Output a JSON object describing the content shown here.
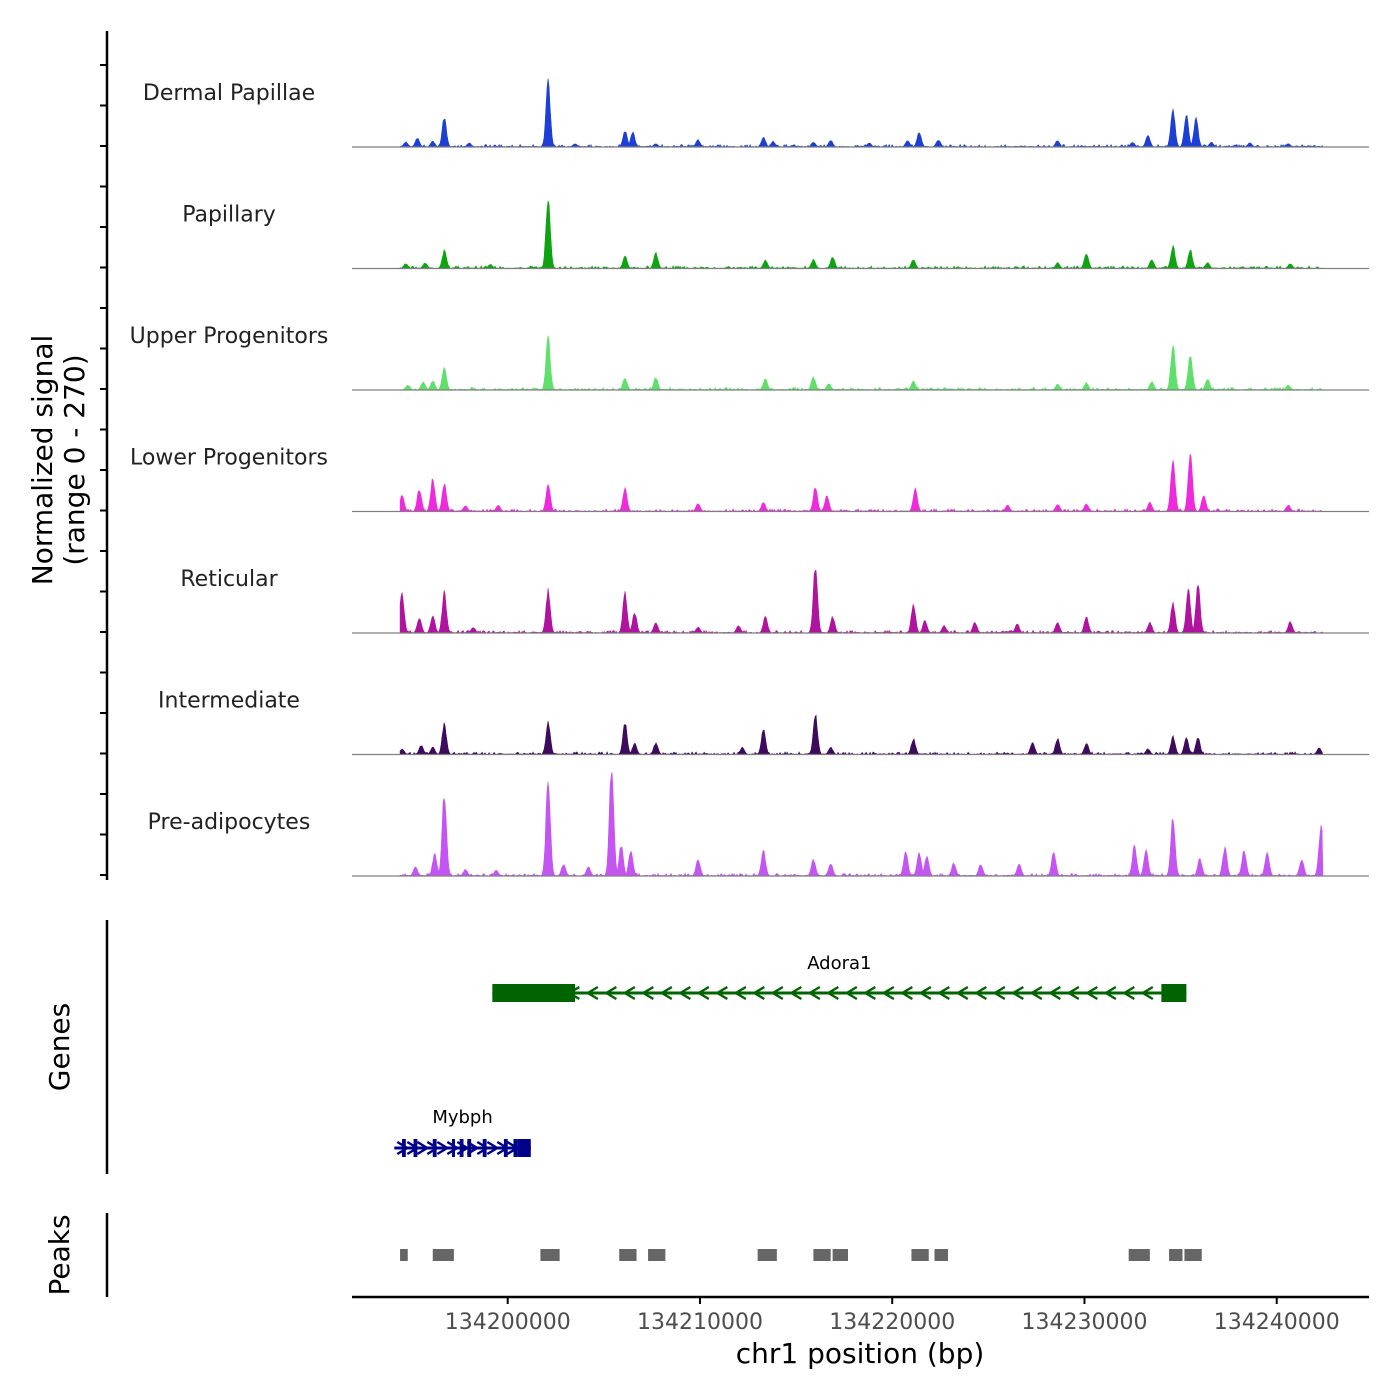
{
  "chart_data": {
    "type": "area",
    "title": "",
    "ylabel_line1": "Normalized signal",
    "ylabel_line2": "(range 0 - 270)",
    "xlabel": "chr1 position (bp)",
    "ylim": [
      0,
      270
    ],
    "xlim": [
      134191900,
      134244800
    ],
    "x_ticks": [
      134200000,
      134210000,
      134220000,
      134230000,
      134240000
    ],
    "x_tick_labels": [
      "134200000",
      "134210000",
      "134220000",
      "134230000",
      "134240000"
    ],
    "track_start": 134194400,
    "track_end": 134242400,
    "series": [
      {
        "name": "Dermal Papillae",
        "color": "#1e3fd6",
        "peaks": [
          {
            "x": 134194700,
            "y": 12
          },
          {
            "x": 134195300,
            "y": 22
          },
          {
            "x": 134196100,
            "y": 14
          },
          {
            "x": 134196700,
            "y": 72
          },
          {
            "x": 134198000,
            "y": 10
          },
          {
            "x": 134202100,
            "y": 162
          },
          {
            "x": 134203500,
            "y": 8
          },
          {
            "x": 134206100,
            "y": 40
          },
          {
            "x": 134206500,
            "y": 36
          },
          {
            "x": 134207700,
            "y": 8
          },
          {
            "x": 134209900,
            "y": 18
          },
          {
            "x": 134213300,
            "y": 24
          },
          {
            "x": 134213800,
            "y": 14
          },
          {
            "x": 134215900,
            "y": 12
          },
          {
            "x": 134216800,
            "y": 16
          },
          {
            "x": 134218800,
            "y": 10
          },
          {
            "x": 134220800,
            "y": 16
          },
          {
            "x": 134221400,
            "y": 36
          },
          {
            "x": 134222400,
            "y": 18
          },
          {
            "x": 134228600,
            "y": 16
          },
          {
            "x": 134232500,
            "y": 12
          },
          {
            "x": 134233300,
            "y": 30
          },
          {
            "x": 134234600,
            "y": 95
          },
          {
            "x": 134235300,
            "y": 78
          },
          {
            "x": 134235800,
            "y": 70
          },
          {
            "x": 134236600,
            "y": 12
          },
          {
            "x": 134238600,
            "y": 10
          },
          {
            "x": 134240600,
            "y": 8
          }
        ]
      },
      {
        "name": "Papillary",
        "color": "#0fa312",
        "peaks": [
          {
            "x": 134194700,
            "y": 12
          },
          {
            "x": 134195700,
            "y": 14
          },
          {
            "x": 134196700,
            "y": 44
          },
          {
            "x": 134199100,
            "y": 10
          },
          {
            "x": 134202100,
            "y": 180
          },
          {
            "x": 134206100,
            "y": 30
          },
          {
            "x": 134207700,
            "y": 38
          },
          {
            "x": 134213400,
            "y": 20
          },
          {
            "x": 134215900,
            "y": 22
          },
          {
            "x": 134216900,
            "y": 28
          },
          {
            "x": 134221100,
            "y": 22
          },
          {
            "x": 134228600,
            "y": 14
          },
          {
            "x": 134230100,
            "y": 38
          },
          {
            "x": 134233500,
            "y": 22
          },
          {
            "x": 134234600,
            "y": 55
          },
          {
            "x": 134235500,
            "y": 46
          },
          {
            "x": 134236400,
            "y": 14
          },
          {
            "x": 134240700,
            "y": 12
          }
        ]
      },
      {
        "name": "Upper Progenitors",
        "color": "#5ee06a",
        "peaks": [
          {
            "x": 134194800,
            "y": 12
          },
          {
            "x": 134195600,
            "y": 20
          },
          {
            "x": 134196100,
            "y": 22
          },
          {
            "x": 134196700,
            "y": 55
          },
          {
            "x": 134202100,
            "y": 130
          },
          {
            "x": 134206100,
            "y": 30
          },
          {
            "x": 134207700,
            "y": 30
          },
          {
            "x": 134213400,
            "y": 28
          },
          {
            "x": 134215900,
            "y": 32
          },
          {
            "x": 134216700,
            "y": 16
          },
          {
            "x": 134221100,
            "y": 22
          },
          {
            "x": 134228600,
            "y": 14
          },
          {
            "x": 134230100,
            "y": 18
          },
          {
            "x": 134233500,
            "y": 20
          },
          {
            "x": 134234600,
            "y": 110
          },
          {
            "x": 134235500,
            "y": 90
          },
          {
            "x": 134236400,
            "y": 28
          },
          {
            "x": 134240600,
            "y": 12
          }
        ]
      },
      {
        "name": "Lower Progenitors",
        "color": "#ee2bdc",
        "peaks": [
          {
            "x": 134194500,
            "y": 40
          },
          {
            "x": 134195400,
            "y": 55
          },
          {
            "x": 134196100,
            "y": 80
          },
          {
            "x": 134196700,
            "y": 68
          },
          {
            "x": 134197800,
            "y": 14
          },
          {
            "x": 134199500,
            "y": 16
          },
          {
            "x": 134202100,
            "y": 68
          },
          {
            "x": 134206100,
            "y": 55
          },
          {
            "x": 134209900,
            "y": 20
          },
          {
            "x": 134213300,
            "y": 22
          },
          {
            "x": 134216000,
            "y": 60
          },
          {
            "x": 134216600,
            "y": 38
          },
          {
            "x": 134221200,
            "y": 55
          },
          {
            "x": 134226000,
            "y": 16
          },
          {
            "x": 134228600,
            "y": 18
          },
          {
            "x": 134230100,
            "y": 18
          },
          {
            "x": 134233400,
            "y": 22
          },
          {
            "x": 134234600,
            "y": 130
          },
          {
            "x": 134235500,
            "y": 140
          },
          {
            "x": 134236200,
            "y": 40
          },
          {
            "x": 134240600,
            "y": 16
          }
        ]
      },
      {
        "name": "Reticular",
        "color": "#b0149e",
        "peaks": [
          {
            "x": 134194500,
            "y": 100
          },
          {
            "x": 134195400,
            "y": 38
          },
          {
            "x": 134196100,
            "y": 42
          },
          {
            "x": 134196700,
            "y": 100
          },
          {
            "x": 134198200,
            "y": 14
          },
          {
            "x": 134202100,
            "y": 105
          },
          {
            "x": 134206100,
            "y": 100
          },
          {
            "x": 134206600,
            "y": 50
          },
          {
            "x": 134207700,
            "y": 26
          },
          {
            "x": 134209900,
            "y": 14
          },
          {
            "x": 134212000,
            "y": 18
          },
          {
            "x": 134213400,
            "y": 40
          },
          {
            "x": 134216000,
            "y": 165
          },
          {
            "x": 134216900,
            "y": 40
          },
          {
            "x": 134221100,
            "y": 70
          },
          {
            "x": 134221700,
            "y": 30
          },
          {
            "x": 134222700,
            "y": 18
          },
          {
            "x": 134224300,
            "y": 26
          },
          {
            "x": 134226500,
            "y": 22
          },
          {
            "x": 134228600,
            "y": 26
          },
          {
            "x": 134230100,
            "y": 40
          },
          {
            "x": 134233400,
            "y": 26
          },
          {
            "x": 134234600,
            "y": 75
          },
          {
            "x": 134235400,
            "y": 105
          },
          {
            "x": 134235900,
            "y": 120
          },
          {
            "x": 134240700,
            "y": 28
          }
        ]
      },
      {
        "name": "Intermediate",
        "color": "#3e0a5c",
        "peaks": [
          {
            "x": 134194500,
            "y": 14
          },
          {
            "x": 134195500,
            "y": 22
          },
          {
            "x": 134196100,
            "y": 18
          },
          {
            "x": 134196700,
            "y": 75
          },
          {
            "x": 134202100,
            "y": 80
          },
          {
            "x": 134206100,
            "y": 78
          },
          {
            "x": 134206600,
            "y": 28
          },
          {
            "x": 134207700,
            "y": 28
          },
          {
            "x": 134212200,
            "y": 18
          },
          {
            "x": 134213300,
            "y": 60
          },
          {
            "x": 134216000,
            "y": 100
          },
          {
            "x": 134216800,
            "y": 18
          },
          {
            "x": 134221100,
            "y": 38
          },
          {
            "x": 134227300,
            "y": 30
          },
          {
            "x": 134228600,
            "y": 40
          },
          {
            "x": 134230100,
            "y": 28
          },
          {
            "x": 134233300,
            "y": 14
          },
          {
            "x": 134234600,
            "y": 45
          },
          {
            "x": 134235300,
            "y": 42
          },
          {
            "x": 134235900,
            "y": 42
          },
          {
            "x": 134242200,
            "y": 16
          }
        ]
      },
      {
        "name": "Pre-adipocytes",
        "color": "#c455f2",
        "peaks": [
          {
            "x": 134195200,
            "y": 22
          },
          {
            "x": 134196200,
            "y": 55
          },
          {
            "x": 134196700,
            "y": 210
          },
          {
            "x": 134197800,
            "y": 16
          },
          {
            "x": 134199400,
            "y": 14
          },
          {
            "x": 134202100,
            "y": 250
          },
          {
            "x": 134202900,
            "y": 28
          },
          {
            "x": 134204200,
            "y": 22
          },
          {
            "x": 134205400,
            "y": 275
          },
          {
            "x": 134205900,
            "y": 75
          },
          {
            "x": 134206400,
            "y": 60
          },
          {
            "x": 134209900,
            "y": 40
          },
          {
            "x": 134213300,
            "y": 62
          },
          {
            "x": 134215900,
            "y": 40
          },
          {
            "x": 134216800,
            "y": 30
          },
          {
            "x": 134220700,
            "y": 60
          },
          {
            "x": 134221400,
            "y": 55
          },
          {
            "x": 134221800,
            "y": 48
          },
          {
            "x": 134223200,
            "y": 32
          },
          {
            "x": 134224600,
            "y": 28
          },
          {
            "x": 134226600,
            "y": 28
          },
          {
            "x": 134228400,
            "y": 60
          },
          {
            "x": 134232600,
            "y": 75
          },
          {
            "x": 134233200,
            "y": 65
          },
          {
            "x": 134234600,
            "y": 150
          },
          {
            "x": 134236000,
            "y": 42
          },
          {
            "x": 134237300,
            "y": 70
          },
          {
            "x": 134238300,
            "y": 65
          },
          {
            "x": 134239500,
            "y": 60
          },
          {
            "x": 134241300,
            "y": 40
          },
          {
            "x": 134242300,
            "y": 125
          }
        ]
      }
    ],
    "genes_label": "Genes",
    "genes": [
      {
        "name": "Adora1",
        "strand": "-",
        "color": "#006400",
        "start": 134199200,
        "end": 134235300,
        "exons": [
          [
            134199200,
            134203500
          ],
          [
            134234000,
            134235300
          ]
        ]
      },
      {
        "name": "Mybph",
        "strand": "+",
        "color": "#00008b",
        "start": 134194100,
        "end": 134201200,
        "exons": [
          [
            134194500,
            134194700
          ],
          [
            134195100,
            134195300
          ],
          [
            134196100,
            134196300
          ],
          [
            134197100,
            134197200
          ],
          [
            134197500,
            134197700
          ],
          [
            134197900,
            134198100
          ],
          [
            134198700,
            134198900
          ],
          [
            134199800,
            134200000
          ],
          [
            134200300,
            134200500
          ],
          [
            134200500,
            134201200
          ]
        ]
      }
    ],
    "peaks_label": "Peaks",
    "peak_regions": [
      [
        134194400,
        134194800
      ],
      [
        134196100,
        134197200
      ],
      [
        134201700,
        134202700
      ],
      [
        134205800,
        134206700
      ],
      [
        134207300,
        134208200
      ],
      [
        134213000,
        134214000
      ],
      [
        134215900,
        134216800
      ],
      [
        134216900,
        134217700
      ],
      [
        134221000,
        134221900
      ],
      [
        134222200,
        134222900
      ],
      [
        134232300,
        134233400
      ],
      [
        134234400,
        134235100
      ],
      [
        134235200,
        134236100
      ]
    ]
  }
}
